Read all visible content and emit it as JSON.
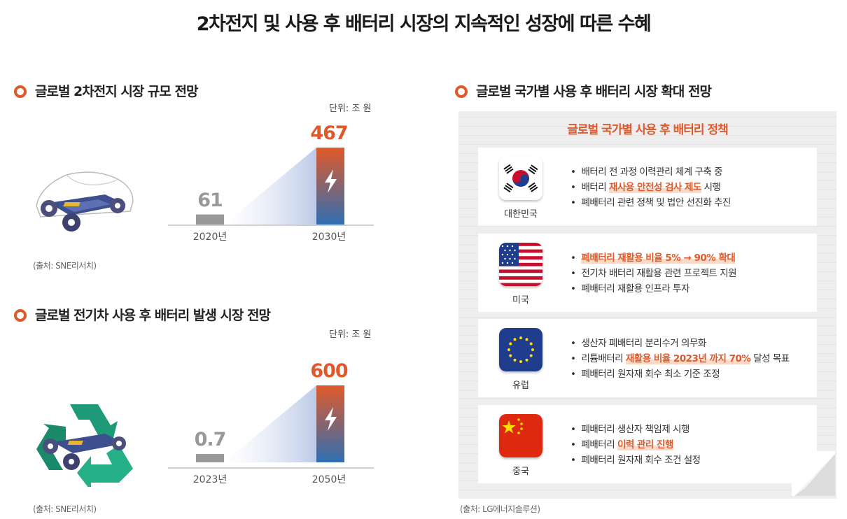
{
  "title": "2차전지 및 사용 후 배터리 시장의 지속적인 성장에 따른 수혜",
  "chart_data": [
    {
      "type": "bar",
      "title": "글로벌 2차전지 시장 규모 전망",
      "unit": "단위: 조 원",
      "categories": [
        "2020년",
        "2030년"
      ],
      "values": [
        61,
        467
      ],
      "value_labels": [
        "61",
        "467"
      ],
      "ylim": [
        0,
        467
      ],
      "source": "(출처: SNE리서치)"
    },
    {
      "type": "bar",
      "title": "글로벌 전기차 사용 후 배터리 발생 시장 전망",
      "unit": "단위: 조 원",
      "categories": [
        "2023년",
        "2050년"
      ],
      "values": [
        0.7,
        600
      ],
      "value_labels": [
        "0.7",
        "600"
      ],
      "ylim": [
        0,
        600
      ],
      "source": "(출처: SNE리서치)"
    }
  ],
  "right_section": {
    "title": "글로벌 국가별 사용 후 배터리 시장 확대 전망",
    "panel_title": "글로벌 국가별 사용 후 배터리 정책",
    "source": "(출처: LG에너지솔루션)",
    "countries": [
      {
        "name": "대한민국",
        "flag": "korea-flag-icon",
        "items": [
          {
            "pre": "배터리 전 과정 이력관리 체계 구축 중",
            "hl": "",
            "post": ""
          },
          {
            "pre": "배터리 ",
            "hl": "재사용 안전성 검사 제도",
            "post": " 시행"
          },
          {
            "pre": "폐배터리 관련 정책 및 법안 선진화 추진",
            "hl": "",
            "post": ""
          }
        ]
      },
      {
        "name": "미국",
        "flag": "usa-flag-icon",
        "items": [
          {
            "pre": "",
            "hl": "폐배터리 재활용 비율 5% → 90% 확대",
            "post": ""
          },
          {
            "pre": "전기차 배터리 재활용 관련 프로젝트 지원",
            "hl": "",
            "post": ""
          },
          {
            "pre": "폐배터리 재활용 인프라 투자",
            "hl": "",
            "post": ""
          }
        ]
      },
      {
        "name": "유럽",
        "flag": "eu-flag-icon",
        "items": [
          {
            "pre": "생산자 폐배터리 분리수거 의무화",
            "hl": "",
            "post": ""
          },
          {
            "pre": "리튬배터리 ",
            "hl": "재활용 비율 2023년 까지 70%",
            "post": " 달성 목표"
          },
          {
            "pre": "폐배터리 원자재 회수 최소 기준 조정",
            "hl": "",
            "post": ""
          }
        ]
      },
      {
        "name": "중국",
        "flag": "china-flag-icon",
        "items": [
          {
            "pre": "폐배터리 생산자 책임제 시행",
            "hl": "",
            "post": ""
          },
          {
            "pre": "폐배터리 ",
            "hl": "이력 관리 진행",
            "post": ""
          },
          {
            "pre": "폐배터리 원자재 회수 조건 설정",
            "hl": "",
            "post": ""
          }
        ]
      }
    ]
  },
  "colors": {
    "accent": "#e0592a",
    "bar_small": "#999999",
    "bar_top": "#e0592a",
    "bar_bottom": "#2f6fb3"
  }
}
